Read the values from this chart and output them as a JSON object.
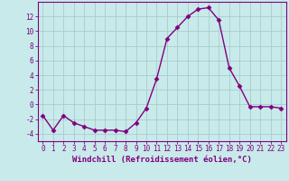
{
  "x": [
    0,
    1,
    2,
    3,
    4,
    5,
    6,
    7,
    8,
    9,
    10,
    11,
    12,
    13,
    14,
    15,
    16,
    17,
    18,
    19,
    20,
    21,
    22,
    23
  ],
  "y": [
    -1.5,
    -3.5,
    -1.5,
    -2.5,
    -3.0,
    -3.5,
    -3.5,
    -3.5,
    -3.7,
    -2.5,
    -0.5,
    3.5,
    9.0,
    10.5,
    12.0,
    13.0,
    13.2,
    11.5,
    5.0,
    2.5,
    -0.3,
    -0.3,
    -0.3,
    -0.5
  ],
  "line_color": "#800080",
  "marker": "D",
  "markersize": 2.5,
  "linewidth": 1.0,
  "background_color": "#c8eaea",
  "grid_color": "#a8cccc",
  "xlabel": "Windchill (Refroidissement éolien,°C)",
  "ylim": [
    -5,
    14
  ],
  "xlim": [
    -0.5,
    23.5
  ],
  "yticks": [
    -4,
    -2,
    0,
    2,
    4,
    6,
    8,
    10,
    12
  ],
  "xticks": [
    0,
    1,
    2,
    3,
    4,
    5,
    6,
    7,
    8,
    9,
    10,
    11,
    12,
    13,
    14,
    15,
    16,
    17,
    18,
    19,
    20,
    21,
    22,
    23
  ],
  "tick_color": "#800080",
  "label_color": "#800080",
  "tick_fontsize": 5.5,
  "xlabel_fontsize": 6.5
}
